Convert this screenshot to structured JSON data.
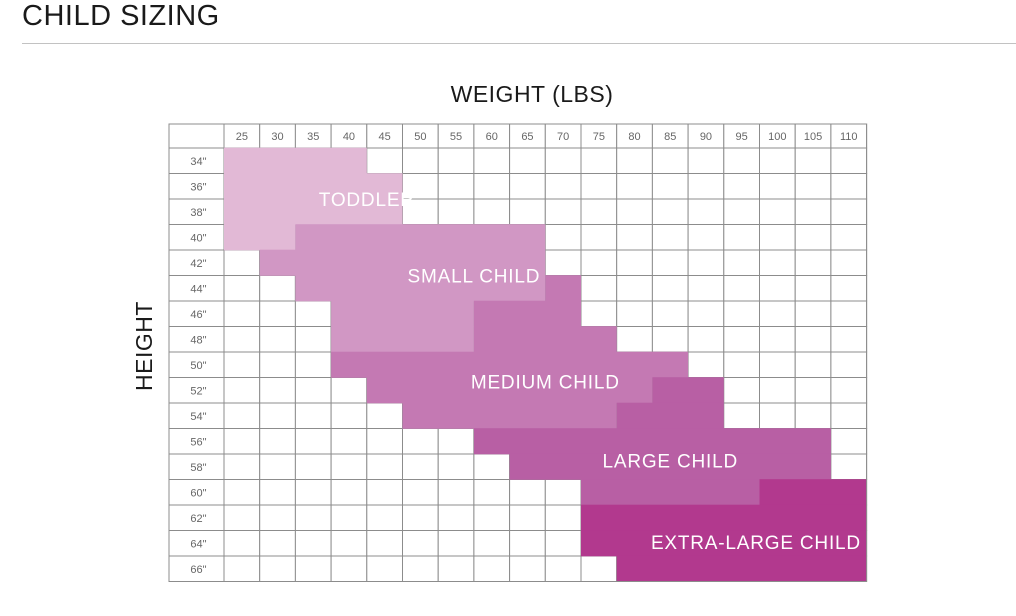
{
  "page": {
    "title": "CHILD SIZING"
  },
  "chart_data": {
    "type": "heatmap",
    "title": "",
    "xlabel": "WEIGHT (LBS)",
    "ylabel": "HEIGHT",
    "x_unit": "lbs",
    "y_unit": "in",
    "x": [
      25,
      30,
      35,
      40,
      45,
      50,
      55,
      60,
      65,
      70,
      75,
      80,
      85,
      90,
      95,
      100,
      105,
      110
    ],
    "x_tick_labels": [
      "25",
      "30",
      "35",
      "40",
      "45",
      "50",
      "55",
      "60",
      "65",
      "70",
      "75",
      "80",
      "85",
      "90",
      "95",
      "100",
      "105",
      "110"
    ],
    "y": [
      34,
      36,
      38,
      40,
      42,
      44,
      46,
      48,
      50,
      52,
      54,
      56,
      58,
      60,
      62,
      64,
      66
    ],
    "y_tick_labels": [
      "34\"",
      "36\"",
      "38\"",
      "40\"",
      "42\"",
      "44\"",
      "46\"",
      "48\"",
      "50\"",
      "52\"",
      "54\"",
      "56\"",
      "58\"",
      "60\"",
      "62\"",
      "64\"",
      "66\""
    ],
    "sizes": [
      {
        "name": "TODDLER",
        "color": "#e2b9d6",
        "label_at": {
          "weight": 42.5,
          "height": 37
        },
        "ranges": [
          {
            "height": 34,
            "weight_min": 25,
            "weight_max": 40
          },
          {
            "height": 36,
            "weight_min": 25,
            "weight_max": 45
          },
          {
            "height": 38,
            "weight_min": 25,
            "weight_max": 45
          },
          {
            "height": 40,
            "weight_min": 25,
            "weight_max": 30
          }
        ]
      },
      {
        "name": "SMALL CHILD",
        "color": "#d197c4",
        "label_at": {
          "weight": 57.5,
          "height": 43
        },
        "ranges": [
          {
            "height": 40,
            "weight_min": 35,
            "weight_max": 65
          },
          {
            "height": 42,
            "weight_min": 30,
            "weight_max": 65
          },
          {
            "height": 44,
            "weight_min": 35,
            "weight_max": 65
          },
          {
            "height": 46,
            "weight_min": 40,
            "weight_max": 55
          },
          {
            "height": 48,
            "weight_min": 40,
            "weight_max": 55
          }
        ]
      },
      {
        "name": "MEDIUM CHILD",
        "color": "#c479b3",
        "label_at": {
          "weight": 67.5,
          "height": 51.3
        },
        "ranges": [
          {
            "height": 44,
            "weight_min": 70,
            "weight_max": 70
          },
          {
            "height": 46,
            "weight_min": 60,
            "weight_max": 70
          },
          {
            "height": 48,
            "weight_min": 60,
            "weight_max": 75
          },
          {
            "height": 50,
            "weight_min": 40,
            "weight_max": 85
          },
          {
            "height": 52,
            "weight_min": 45,
            "weight_max": 80
          },
          {
            "height": 54,
            "weight_min": 50,
            "weight_max": 75
          }
        ]
      },
      {
        "name": "LARGE CHILD",
        "color": "#b85fa4",
        "label_at": {
          "weight": 85,
          "height": 57.5
        },
        "ranges": [
          {
            "height": 52,
            "weight_min": 85,
            "weight_max": 90
          },
          {
            "height": 54,
            "weight_min": 80,
            "weight_max": 90
          },
          {
            "height": 56,
            "weight_min": 60,
            "weight_max": 105
          },
          {
            "height": 58,
            "weight_min": 65,
            "weight_max": 105
          },
          {
            "height": 60,
            "weight_min": 75,
            "weight_max": 95
          }
        ]
      },
      {
        "name": "EXTRA-LARGE CHILD",
        "color": "#b2398e",
        "label_at": {
          "weight": 97,
          "height": 63.9
        },
        "ranges": [
          {
            "height": 60,
            "weight_min": 100,
            "weight_max": 110
          },
          {
            "height": 62,
            "weight_min": 75,
            "weight_max": 110
          },
          {
            "height": 64,
            "weight_min": 75,
            "weight_max": 110
          },
          {
            "height": 66,
            "weight_min": 80,
            "weight_max": 110
          }
        ]
      }
    ],
    "grid": true,
    "legend": "none"
  }
}
